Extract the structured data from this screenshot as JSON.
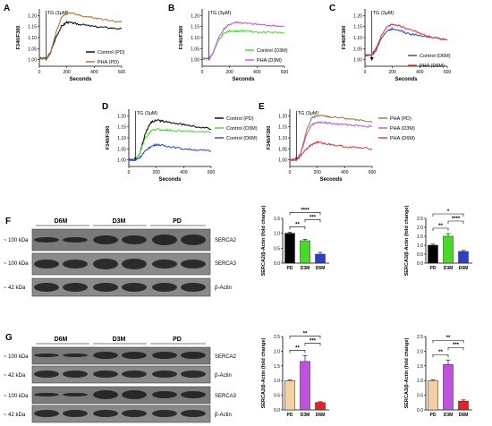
{
  "panels": {
    "A": {
      "letter": "A",
      "tg": "TG (3μM)",
      "ylabel": "F340/F380",
      "xlabel": "Seconds",
      "legend": [
        "Control (PD)",
        "PHA (PD)"
      ]
    },
    "B": {
      "letter": "B",
      "tg": "TG (3μM)",
      "ylabel": "F340/F380",
      "xlabel": "Seconds",
      "legend": [
        "Control (D3M)",
        "PHA (D3M)"
      ]
    },
    "C": {
      "letter": "C",
      "tg": "TG (3μM)",
      "ylabel": "F340/F380",
      "xlabel": "Seconds",
      "legend": [
        "Control (D6M)",
        "PHA (D6M)"
      ]
    },
    "D": {
      "letter": "D",
      "tg": "TG (3μM)",
      "ylabel": "F340/F380",
      "xlabel": "Seconds",
      "legend": [
        "Control (PD)",
        "Control (D3M)",
        "Control (D6M)"
      ]
    },
    "E": {
      "letter": "E",
      "tg": "TG (3μM)",
      "ylabel": "F340/F380",
      "xlabel": "Seconds",
      "legend": [
        "PHA (PD)",
        "PHA (D3M)",
        "PHA (D6M)"
      ]
    },
    "F": {
      "letter": "F",
      "groups": [
        "D6M",
        "D3M",
        "PD"
      ],
      "mw": [
        "~ 100 kDa",
        "~ 100 kDa",
        "~ 42 kDa"
      ],
      "rows": [
        "SERCA2",
        "SERCA3",
        "β-Actin"
      ]
    },
    "G": {
      "letter": "G",
      "groups": [
        "D6M",
        "D3M",
        "PD"
      ],
      "mw": [
        "~ 100 kDa",
        "~ 42 kDa",
        "~ 100 kDa",
        "~ 42 kDa"
      ],
      "rows": [
        "SERCA2",
        "β-Actin",
        "SERCA3",
        "β-Actin"
      ]
    }
  },
  "colors": {
    "ctrl_pd": "#000000",
    "pha_pd": "#a0722a",
    "ctrl_d3m": "#44dd22",
    "pha_d3m": "#c050e0",
    "ctrl_d6m": "#2a3fd0",
    "pha_d6m": "#e83030",
    "bar_pd": "#f6cfa0",
    "bar_d6m_g": "#e82020"
  },
  "chart_data": [
    {
      "panel": "A",
      "type": "line",
      "xlabel": "Seconds",
      "ylabel": "F340/F380",
      "xlim": [
        0,
        600
      ],
      "ylim": [
        0.97,
        1.23
      ],
      "xticks": [
        0,
        200,
        400,
        600
      ],
      "yticks": [
        1.0,
        1.05,
        1.1,
        1.15,
        1.2
      ],
      "annotation": "TG (3μM)",
      "annotation_x": 50,
      "series": [
        {
          "name": "Control (PD)",
          "x": [
            0,
            50,
            80,
            120,
            160,
            200,
            250,
            300,
            400,
            500,
            600
          ],
          "y": [
            1.005,
            1.005,
            1.03,
            1.1,
            1.15,
            1.17,
            1.165,
            1.16,
            1.15,
            1.145,
            1.14
          ]
        },
        {
          "name": "PHA (PD)",
          "x": [
            0,
            50,
            80,
            120,
            160,
            200,
            250,
            300,
            400,
            500,
            600
          ],
          "y": [
            1.005,
            1.005,
            1.03,
            1.12,
            1.19,
            1.21,
            1.21,
            1.2,
            1.19,
            1.18,
            1.17
          ]
        }
      ]
    },
    {
      "panel": "B",
      "type": "line",
      "xlabel": "Seconds",
      "ylabel": "F340/F380",
      "xlim": [
        0,
        600
      ],
      "ylim": [
        0.97,
        1.23
      ],
      "xticks": [
        0,
        200,
        400,
        600
      ],
      "yticks": [
        1.0,
        1.05,
        1.1,
        1.15,
        1.2
      ],
      "annotation": "TG (3μM)",
      "annotation_x": 50,
      "series": [
        {
          "name": "Control (D3M)",
          "x": [
            0,
            50,
            80,
            120,
            160,
            200,
            250,
            300,
            400,
            500,
            600
          ],
          "y": [
            1.005,
            1.005,
            1.03,
            1.09,
            1.12,
            1.13,
            1.13,
            1.13,
            1.125,
            1.125,
            1.12
          ]
        },
        {
          "name": "PHA (D3M)",
          "x": [
            0,
            50,
            80,
            120,
            160,
            200,
            250,
            300,
            400,
            500,
            600
          ],
          "y": [
            1.005,
            1.005,
            1.03,
            1.1,
            1.14,
            1.16,
            1.17,
            1.165,
            1.16,
            1.155,
            1.15
          ]
        }
      ]
    },
    {
      "panel": "C",
      "type": "line",
      "xlabel": "Seconds",
      "ylabel": "F340/F380",
      "xlim": [
        0,
        600
      ],
      "ylim": [
        0.97,
        1.23
      ],
      "xticks": [
        0,
        200,
        400,
        600
      ],
      "yticks": [
        1.0,
        1.05,
        1.1,
        1.15,
        1.2
      ],
      "annotation": "TG (3μM)",
      "annotation_x": 50,
      "series": [
        {
          "name": "Control (D6M)",
          "x": [
            0,
            50,
            80,
            120,
            160,
            200,
            250,
            300,
            400,
            500,
            600
          ],
          "y": [
            1.02,
            1.02,
            1.04,
            1.1,
            1.13,
            1.14,
            1.135,
            1.12,
            1.11,
            1.1,
            1.09
          ]
        },
        {
          "name": "PHA (D6M)",
          "x": [
            0,
            50,
            80,
            120,
            160,
            200,
            250,
            300,
            400,
            500,
            600
          ],
          "y": [
            1.02,
            1.02,
            1.05,
            1.11,
            1.15,
            1.16,
            1.155,
            1.14,
            1.12,
            1.1,
            1.09
          ]
        }
      ]
    },
    {
      "panel": "D",
      "type": "line",
      "xlabel": "Seconds",
      "ylabel": "F340/F380",
      "xlim": [
        0,
        600
      ],
      "ylim": [
        0.97,
        1.23
      ],
      "xticks": [
        0,
        200,
        400,
        600
      ],
      "yticks": [
        1.0,
        1.05,
        1.1,
        1.15,
        1.2
      ],
      "annotation": "TG (3μM)",
      "annotation_x": 50,
      "series": [
        {
          "name": "Control (PD)",
          "x": [
            0,
            50,
            80,
            120,
            160,
            200,
            250,
            300,
            400,
            500,
            600
          ],
          "y": [
            1.0,
            1.0,
            1.03,
            1.12,
            1.17,
            1.18,
            1.175,
            1.17,
            1.16,
            1.15,
            1.14
          ]
        },
        {
          "name": "Control (D3M)",
          "x": [
            0,
            50,
            80,
            120,
            160,
            200,
            250,
            300,
            400,
            500,
            600
          ],
          "y": [
            1.0,
            1.0,
            1.03,
            1.1,
            1.13,
            1.14,
            1.135,
            1.135,
            1.13,
            1.13,
            1.125
          ]
        },
        {
          "name": "Control (D6M)",
          "x": [
            0,
            50,
            80,
            120,
            160,
            200,
            250,
            300,
            400,
            500,
            600
          ],
          "y": [
            1.0,
            1.0,
            1.01,
            1.04,
            1.06,
            1.07,
            1.065,
            1.06,
            1.05,
            1.045,
            1.04
          ]
        }
      ]
    },
    {
      "panel": "E",
      "type": "line",
      "xlabel": "Seconds",
      "ylabel": "F340/F380",
      "xlim": [
        0,
        600
      ],
      "ylim": [
        0.97,
        1.23
      ],
      "xticks": [
        0,
        200,
        400,
        600
      ],
      "yticks": [
        1.0,
        1.05,
        1.1,
        1.15,
        1.2
      ],
      "annotation": "TG (3μM)",
      "annotation_x": 50,
      "series": [
        {
          "name": "PHA (PD)",
          "x": [
            0,
            50,
            80,
            120,
            160,
            200,
            250,
            300,
            400,
            500,
            600
          ],
          "y": [
            1.0,
            1.0,
            1.03,
            1.13,
            1.19,
            1.2,
            1.2,
            1.195,
            1.19,
            1.18,
            1.17
          ]
        },
        {
          "name": "PHA (D3M)",
          "x": [
            0,
            50,
            80,
            120,
            160,
            200,
            250,
            300,
            400,
            500,
            600
          ],
          "y": [
            1.0,
            1.0,
            1.03,
            1.11,
            1.16,
            1.17,
            1.17,
            1.165,
            1.16,
            1.155,
            1.15
          ]
        },
        {
          "name": "PHA (D6M)",
          "x": [
            0,
            50,
            80,
            120,
            160,
            200,
            250,
            300,
            400,
            500,
            600
          ],
          "y": [
            1.0,
            1.0,
            1.02,
            1.05,
            1.07,
            1.08,
            1.075,
            1.07,
            1.06,
            1.055,
            1.05
          ]
        }
      ]
    },
    {
      "panel": "F-SERCA2",
      "type": "bar",
      "ylabel": "SERCA2/β-Actin (fold change)",
      "categories": [
        "PD",
        "D3M",
        "D6M"
      ],
      "values": [
        1.0,
        0.75,
        0.3
      ],
      "errors": [
        0.04,
        0.05,
        0.06
      ],
      "ylim": [
        0,
        1.5
      ],
      "yticks": [
        0.0,
        0.5,
        1.0,
        1.5
      ],
      "significance": [
        [
          "PD",
          "D3M",
          "**"
        ],
        [
          "D3M",
          "D6M",
          "***"
        ],
        [
          "PD",
          "D6M",
          "****"
        ]
      ]
    },
    {
      "panel": "F-SERCA3",
      "type": "bar",
      "ylabel": "SERCA3/β-Actin (fold change)",
      "categories": [
        "PD",
        "D3M",
        "D6M"
      ],
      "values": [
        1.0,
        1.5,
        0.65
      ],
      "errors": [
        0.06,
        0.15,
        0.06
      ],
      "ylim": [
        0,
        2.5
      ],
      "yticks": [
        0.0,
        0.5,
        1.0,
        1.5,
        2.0,
        2.5
      ],
      "significance": [
        [
          "PD",
          "D3M",
          "**"
        ],
        [
          "D3M",
          "D6M",
          "****"
        ],
        [
          "PD",
          "D6M",
          "*"
        ]
      ]
    },
    {
      "panel": "G-SERCA2",
      "type": "bar",
      "ylabel": "SERCA2/β-Actin (fold change)",
      "categories": [
        "PD",
        "D3M",
        "D6M"
      ],
      "values": [
        1.0,
        1.65,
        0.25
      ],
      "errors": [
        0.03,
        0.2,
        0.03
      ],
      "ylim": [
        0,
        2.5
      ],
      "yticks": [
        0.0,
        0.5,
        1.0,
        1.5,
        2.0,
        2.5
      ],
      "significance": [
        [
          "PD",
          "D3M",
          "**"
        ],
        [
          "D3M",
          "D6M",
          "***"
        ],
        [
          "PD",
          "D6M",
          "**"
        ]
      ]
    },
    {
      "panel": "G-SERCA3",
      "type": "bar",
      "ylabel": "SERCA3/β-Actin (fold change)",
      "categories": [
        "PD",
        "D3M",
        "D6M"
      ],
      "values": [
        1.0,
        1.55,
        0.3
      ],
      "errors": [
        0.03,
        0.15,
        0.04
      ],
      "ylim": [
        0,
        2.5
      ],
      "yticks": [
        0.0,
        0.5,
        1.0,
        1.5,
        2.0,
        2.5
      ],
      "significance": [
        [
          "PD",
          "D3M",
          "**"
        ],
        [
          "D3M",
          "D6M",
          "***"
        ],
        [
          "PD",
          "D6M",
          "**"
        ]
      ]
    }
  ]
}
